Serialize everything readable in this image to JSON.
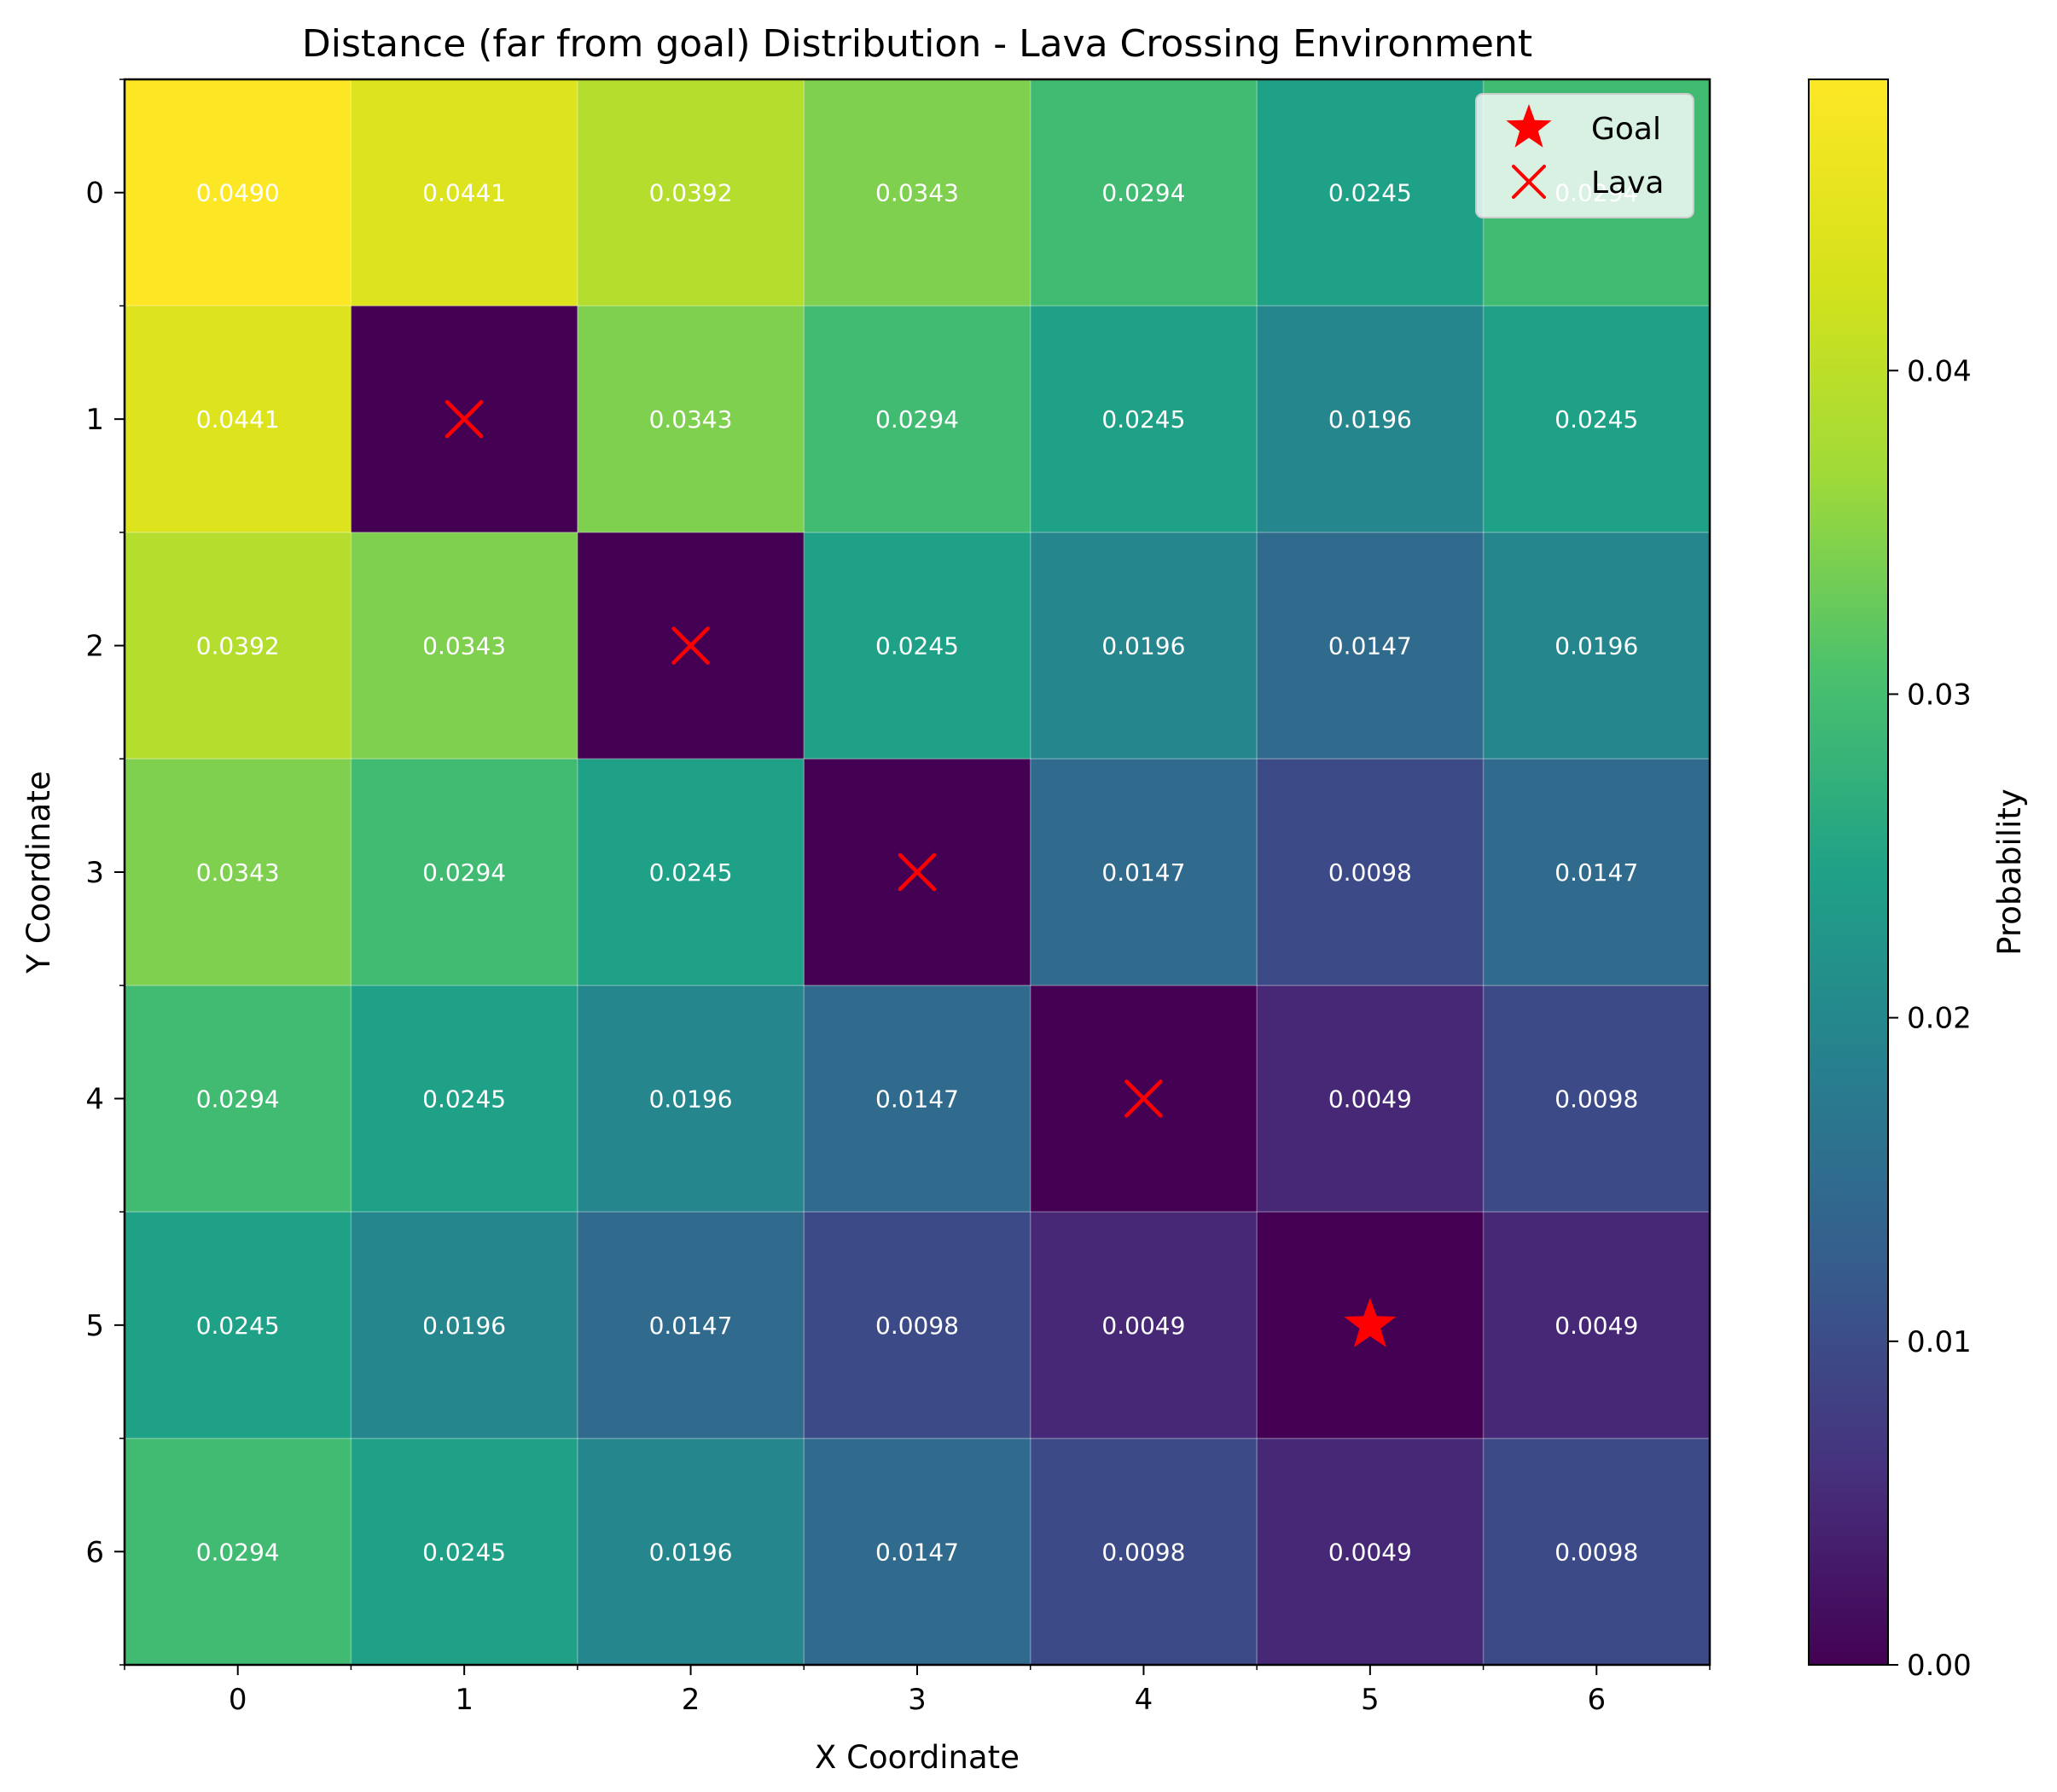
{
  "chart_data": {
    "type": "heatmap",
    "title": "Distance (far from goal) Distribution - Lava Crossing Environment",
    "xlabel": "X Coordinate",
    "ylabel": "Y Coordinate",
    "x_ticks": [
      "0",
      "1",
      "2",
      "3",
      "4",
      "5",
      "6"
    ],
    "y_ticks": [
      "0",
      "1",
      "2",
      "3",
      "4",
      "5",
      "6"
    ],
    "values": [
      [
        0.049,
        0.0441,
        0.0392,
        0.0343,
        0.0294,
        0.0245,
        0.0294
      ],
      [
        0.0441,
        0.0,
        0.0343,
        0.0294,
        0.0245,
        0.0196,
        0.0245
      ],
      [
        0.0392,
        0.0343,
        0.0,
        0.0245,
        0.0196,
        0.0147,
        0.0196
      ],
      [
        0.0343,
        0.0294,
        0.0245,
        0.0,
        0.0147,
        0.0098,
        0.0147
      ],
      [
        0.0294,
        0.0245,
        0.0196,
        0.0147,
        0.0,
        0.0049,
        0.0098
      ],
      [
        0.0245,
        0.0196,
        0.0147,
        0.0098,
        0.0049,
        0.0,
        0.0049
      ],
      [
        0.0294,
        0.0245,
        0.0196,
        0.0147,
        0.0098,
        0.0049,
        0.0098
      ]
    ],
    "cell_labels": [
      [
        "0.0490",
        "0.0441",
        "0.0392",
        "0.0343",
        "0.0294",
        "0.0245",
        "0.0294"
      ],
      [
        "0.0441",
        "",
        "0.0343",
        "0.0294",
        "0.0245",
        "0.0196",
        "0.0245"
      ],
      [
        "0.0392",
        "0.0343",
        "",
        "0.0245",
        "0.0196",
        "0.0147",
        "0.0196"
      ],
      [
        "0.0343",
        "0.0294",
        "0.0245",
        "",
        "0.0147",
        "0.0098",
        "0.0147"
      ],
      [
        "0.0294",
        "0.0245",
        "0.0196",
        "0.0147",
        "",
        "0.0049",
        "0.0098"
      ],
      [
        "0.0245",
        "0.0196",
        "0.0147",
        "0.0098",
        "0.0049",
        "",
        "0.0049"
      ],
      [
        "0.0294",
        "0.0245",
        "0.0196",
        "0.0147",
        "0.0098",
        "0.0049",
        "0.0098"
      ]
    ],
    "lava": [
      [
        1,
        1
      ],
      [
        2,
        2
      ],
      [
        3,
        3
      ],
      [
        4,
        4
      ]
    ],
    "goal": [
      5,
      5
    ],
    "colormap": "viridis",
    "vmin": 0.0,
    "vmax": 0.049,
    "colorbar": {
      "label": "Probability",
      "ticks": [
        "0.00",
        "0.01",
        "0.02",
        "0.03",
        "0.04"
      ],
      "tick_values": [
        0.0,
        0.01,
        0.02,
        0.03,
        0.04
      ]
    },
    "legend": {
      "placement": "upper-right",
      "items": [
        {
          "label": "Goal",
          "marker": "star",
          "color": "#ff0000"
        },
        {
          "label": "Lava",
          "marker": "x",
          "color": "#ff0000"
        }
      ]
    },
    "marker_color": "#ff0000",
    "grid": true
  }
}
